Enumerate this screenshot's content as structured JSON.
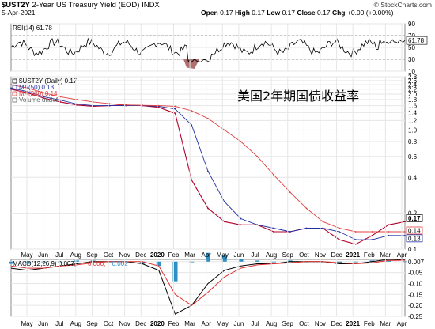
{
  "header": {
    "symbol": "$UST2Y",
    "name": "2-Year US Treasury Yield (EOD)",
    "exchange": "INDX",
    "date": "5-Apr-2021",
    "copyright": "© StockCharts.com",
    "open_label": "Open",
    "open": "0.17",
    "high_label": "High",
    "high": "0.17",
    "low_label": "Low",
    "low": "0.17",
    "close_label": "Close",
    "close": "0.17",
    "chg_label": "Chg",
    "chg": "+0.00 (+0.00%)"
  },
  "annotation": "美国2年期国债收益率",
  "colors": {
    "price": "#b0002a",
    "ma50": "#2030a0",
    "ma200": "#e04040",
    "macd": "#000000",
    "signal": "#e03030",
    "hist": "#2d8fc4",
    "rsi": "#000000",
    "rsi_fill": "#b07070"
  },
  "chart_data": [
    {
      "type": "line",
      "title": "RSI(14) 61.78",
      "legend": [
        {
          "label": "RSI(14) 61.78",
          "color": "#000000"
        }
      ],
      "y_ticks": [
        10,
        30,
        50,
        70,
        90
      ],
      "ylim": [
        10,
        90
      ],
      "last_value": "61.78",
      "overbought": 70,
      "oversold": 30
    },
    {
      "type": "line",
      "legend": [
        {
          "label": "$UST2Y (Daily) 0.17",
          "color": "#000000"
        },
        {
          "label": "MA(50) 0.13",
          "color": "#2030a0"
        },
        {
          "label": "MA(200) 0.14",
          "color": "#e04040"
        },
        {
          "label": "Volume undef",
          "color": "#666666"
        }
      ],
      "y_scale": "log",
      "y_ticks": [
        0.1,
        0.2,
        0.4,
        0.6,
        0.8,
        1.0,
        1.2,
        1.4,
        1.6,
        1.8,
        2.0,
        2.2,
        2.4,
        2.6,
        2.8
      ],
      "ylim": [
        0.1,
        2.8
      ],
      "x_ticks": [
        "May",
        "Jun",
        "Jul",
        "Aug",
        "Sep",
        "Oct",
        "Nov",
        "Dec",
        "2020",
        "Feb",
        "Mar",
        "Apr",
        "May",
        "Jun",
        "Jul",
        "Aug",
        "Sep",
        "Oct",
        "Nov",
        "Dec",
        "2021",
        "Feb",
        "Mar",
        "Apr"
      ],
      "price_tags": [
        "0.17",
        "0.14",
        "0.13"
      ],
      "series": [
        {
          "name": "$UST2Y",
          "values": [
            2.2,
            2.05,
            1.85,
            1.72,
            1.62,
            1.58,
            1.6,
            1.62,
            1.6,
            1.55,
            1.38,
            0.38,
            0.22,
            0.17,
            0.16,
            0.16,
            0.14,
            0.14,
            0.15,
            0.15,
            0.12,
            0.11,
            0.13,
            0.16,
            0.17
          ]
        },
        {
          "name": "MA(50)",
          "values": [
            2.25,
            2.1,
            1.9,
            1.78,
            1.65,
            1.6,
            1.6,
            1.6,
            1.6,
            1.58,
            1.5,
            1.1,
            0.45,
            0.25,
            0.18,
            0.16,
            0.15,
            0.14,
            0.15,
            0.15,
            0.14,
            0.12,
            0.12,
            0.13,
            0.13
          ]
        },
        {
          "name": "MA(200)",
          "values": [
            2.4,
            2.25,
            2.05,
            1.9,
            1.8,
            1.72,
            1.66,
            1.62,
            1.61,
            1.6,
            1.58,
            1.45,
            1.25,
            1.0,
            0.8,
            0.6,
            0.42,
            0.3,
            0.22,
            0.17,
            0.15,
            0.14,
            0.14,
            0.14,
            0.14
          ]
        }
      ]
    },
    {
      "type": "line",
      "legend": [
        {
          "label": "MACD(12,26,9) 0.007,",
          "color": "#000000"
        },
        {
          "label": "0.006,",
          "color": "#e03030"
        },
        {
          "label": "0.002",
          "color": "#2d8fc4"
        }
      ],
      "y_ticks": [
        0.0,
        -0.05,
        -0.1,
        -0.15,
        -0.2,
        -0.25
      ],
      "y_tick_labels": [
        "0.007",
        "-0.05",
        "-0.10",
        "-0.15",
        "-0.20",
        "-0.25"
      ],
      "ylim": [
        -0.25,
        0.01
      ],
      "series": [
        {
          "name": "MACD",
          "values": [
            -0.03,
            -0.04,
            -0.03,
            -0.02,
            -0.01,
            0.0,
            0.0,
            0.0,
            -0.01,
            -0.04,
            -0.24,
            -0.2,
            -0.1,
            -0.04,
            -0.02,
            -0.01,
            -0.01,
            0.0,
            0.0,
            0.0,
            -0.01,
            -0.01,
            0.0,
            0.01,
            0.007
          ]
        },
        {
          "name": "Signal",
          "values": [
            -0.02,
            -0.03,
            -0.03,
            -0.02,
            -0.015,
            -0.005,
            0.0,
            0.0,
            0.0,
            -0.02,
            -0.15,
            -0.2,
            -0.14,
            -0.07,
            -0.03,
            -0.015,
            -0.01,
            -0.005,
            0.0,
            0.0,
            -0.005,
            -0.01,
            -0.005,
            0.005,
            0.006
          ]
        }
      ]
    }
  ]
}
